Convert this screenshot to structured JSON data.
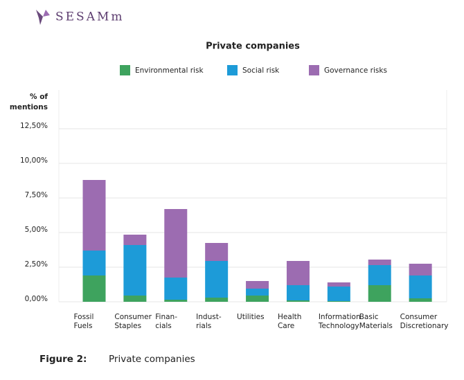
{
  "logo": "SESAMm",
  "caption": {
    "label": "Figure 2:",
    "text": "Private companies"
  },
  "chart_data": {
    "type": "stacked_bar",
    "title": "Private companies",
    "y_label": [
      "% of",
      "mentions"
    ],
    "categories": [
      [
        "Fossil",
        "Fuels"
      ],
      [
        "Consumer",
        "Staples"
      ],
      [
        "Finan-",
        "cials"
      ],
      [
        "Indust-",
        "rials"
      ],
      [
        "Utilities"
      ],
      [
        "Health",
        "Care"
      ],
      [
        "Information",
        "Technology"
      ],
      [
        "Basic",
        "Materials"
      ],
      [
        "Consumer",
        "Discretionary"
      ]
    ],
    "series": [
      {
        "name": "Environmental risk",
        "color": "#3ea35e",
        "values": [
          1.9,
          0.45,
          0.15,
          0.3,
          0.45,
          0.1,
          0.05,
          1.2,
          0.25
        ]
      },
      {
        "name": "Social risk",
        "color": "#1d9bd8",
        "values": [
          1.8,
          3.65,
          1.6,
          2.65,
          0.5,
          1.1,
          1.05,
          1.45,
          1.65
        ]
      },
      {
        "name": "Governance risks",
        "color": "#9c6cb1",
        "values": [
          5.1,
          0.75,
          4.95,
          1.3,
          0.55,
          1.75,
          0.3,
          0.4,
          0.85
        ]
      }
    ],
    "ylim": [
      0,
      15
    ],
    "yticks": [
      {
        "value": 0,
        "label": "0,00%"
      },
      {
        "value": 2.5,
        "label": "2,50%"
      },
      {
        "value": 5,
        "label": "5,00%"
      },
      {
        "value": 7.5,
        "label": "7,50%"
      },
      {
        "value": 10,
        "label": "10,00%"
      },
      {
        "value": 12.5,
        "label": "12,50%"
      }
    ],
    "grid": true,
    "legend": "top"
  }
}
